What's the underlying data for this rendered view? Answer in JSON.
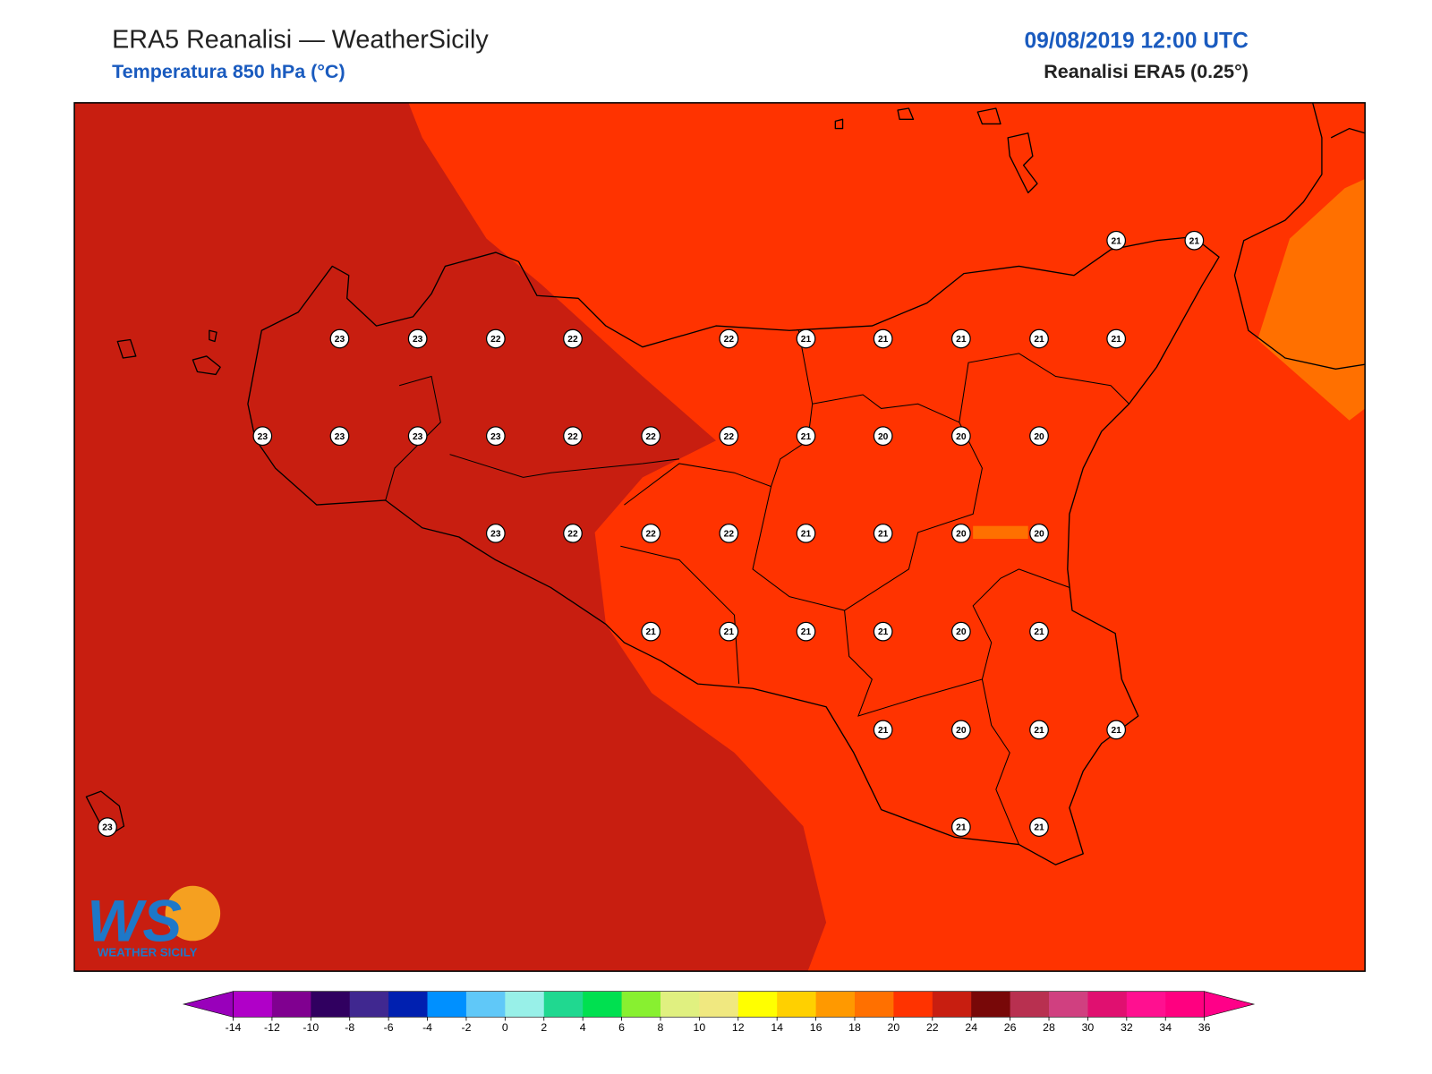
{
  "header": {
    "title": "ERA5 Reanalisi — WeatherSicily",
    "subtitle": "Temperatura 850 hPa (°C)",
    "datetime": "09/08/2019 12:00 UTC",
    "source": "Reanalisi ERA5 (0.25°)"
  },
  "stations": [
    21,
    21,
    23,
    23,
    22,
    22,
    22,
    21,
    21,
    21,
    21,
    21,
    23,
    23,
    23,
    23,
    22,
    22,
    22,
    21,
    20,
    20,
    20,
    23,
    22,
    22,
    22,
    21,
    21,
    20,
    20,
    21,
    21,
    21,
    21,
    20,
    21,
    21,
    20,
    21,
    21,
    21,
    21,
    23
  ],
  "colorbar": {
    "ticks": [
      -14,
      -12,
      -10,
      -8,
      -6,
      -4,
      -2,
      0,
      2,
      4,
      6,
      8,
      10,
      12,
      14,
      16,
      18,
      20,
      22,
      24,
      26,
      28,
      30,
      32,
      34,
      36
    ],
    "colors": [
      "#b000c8",
      "#800090",
      "#300060",
      "#402890",
      "#0020b0",
      "#0090ff",
      "#60c8f8",
      "#98f0e8",
      "#20d890",
      "#00e050",
      "#88f030",
      "#e0f080",
      "#f0e880",
      "#ffff00",
      "#ffd000",
      "#ff9900",
      "#ff7000",
      "#ff3300",
      "#c81e10",
      "#780808",
      "#b83050",
      "#d04080",
      "#e01070",
      "#ff1090",
      "#ff0080"
    ],
    "under_color": "#9900bb",
    "over_color": "#ff0088"
  },
  "logo": {
    "mark": "WS",
    "name": "WEATHER SICILY"
  }
}
